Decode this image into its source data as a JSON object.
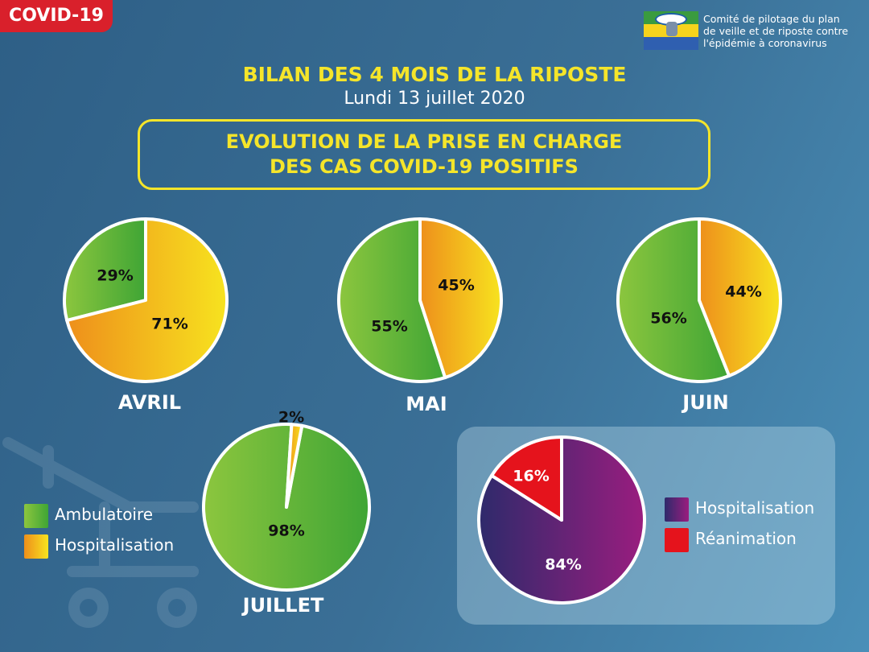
{
  "badge": "COVID-19",
  "header": {
    "org_text": "Comité de pilotage du plan\nde veille et de riposte contre\nl'épidémie à coronavirus",
    "title": "BILAN DES 4 MOIS DE LA RIPOSTE",
    "subtitle": "Lundi 13 juillet 2020",
    "frame_title": "EVOLUTION DE LA PRISE EN CHARGE\nDES CAS COVID-19 POSITIFS"
  },
  "colors": {
    "ambulatoire": "#5fb32e",
    "hospitalisation": "#f2a21c",
    "hospitalisation_purple": "#5b2277",
    "reanimation": "#e3151d",
    "title_yellow": "#f5e52a"
  },
  "legend_left": [
    {
      "label": "Ambulatoire",
      "color": "#5fb32e"
    },
    {
      "label": "Hospitalisation",
      "color": "#f2a21c"
    }
  ],
  "legend_right": [
    {
      "label": "Hospitalisation",
      "color": "#6b1f7e"
    },
    {
      "label": "Réanimation",
      "color": "#e3151d"
    }
  ],
  "chart_data": [
    {
      "type": "pie",
      "title": "AVRIL",
      "labels": [
        "Ambulatoire",
        "Hospitalisation"
      ],
      "values": [
        29,
        71
      ],
      "value_labels": [
        "29%",
        "71%"
      ]
    },
    {
      "type": "pie",
      "title": "MAI",
      "labels": [
        "Ambulatoire",
        "Hospitalisation"
      ],
      "values": [
        55,
        45
      ],
      "value_labels": [
        "55%",
        "45%"
      ]
    },
    {
      "type": "pie",
      "title": "JUIN",
      "labels": [
        "Ambulatoire",
        "Hospitalisation"
      ],
      "values": [
        56,
        44
      ],
      "value_labels": [
        "56%",
        "44%"
      ]
    },
    {
      "type": "pie",
      "title": "JUILLET",
      "labels": [
        "Ambulatoire",
        "Hospitalisation"
      ],
      "values": [
        98,
        2
      ],
      "value_labels": [
        "98%",
        "2%"
      ]
    },
    {
      "type": "pie",
      "title": "",
      "labels": [
        "Hospitalisation",
        "Réanimation"
      ],
      "values": [
        84,
        16
      ],
      "value_labels": [
        "84%",
        "16%"
      ]
    }
  ]
}
